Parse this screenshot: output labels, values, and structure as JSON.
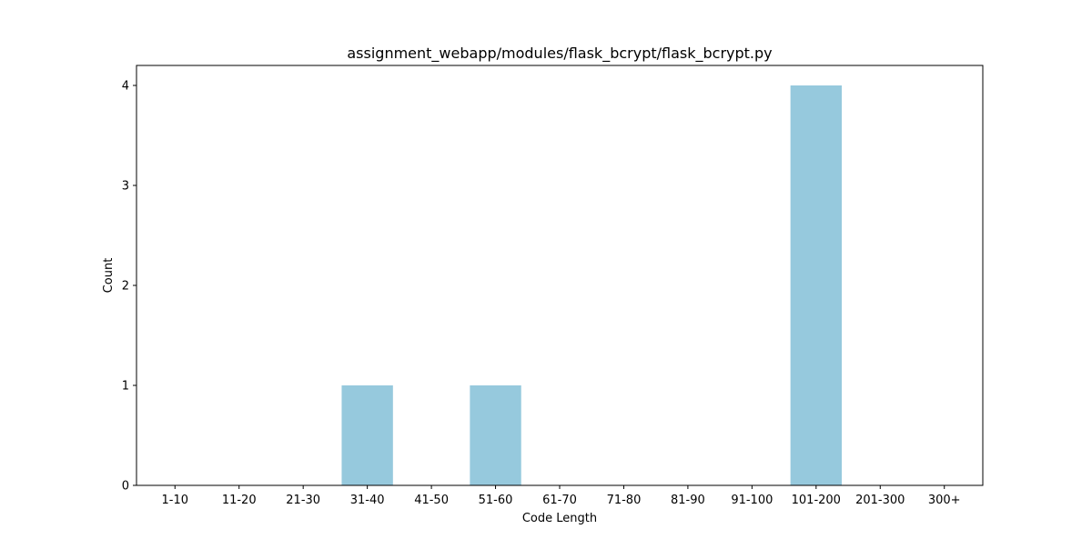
{
  "chart_data": {
    "type": "bar",
    "title": "assignment_webapp/modules/flask_bcrypt/flask_bcrypt.py",
    "xlabel": "Code Length",
    "ylabel": "Count",
    "categories": [
      "1-10",
      "11-20",
      "21-30",
      "31-40",
      "41-50",
      "51-60",
      "61-70",
      "71-80",
      "81-90",
      "91-100",
      "101-200",
      "201-300",
      "300+"
    ],
    "values": [
      0,
      0,
      0,
      1,
      0,
      1,
      0,
      0,
      0,
      0,
      4,
      0,
      0
    ],
    "yticks": [
      0,
      1,
      2,
      3,
      4
    ],
    "ylim": [
      0,
      4.2
    ],
    "grid": false,
    "bar_color": "#96c9dd"
  }
}
